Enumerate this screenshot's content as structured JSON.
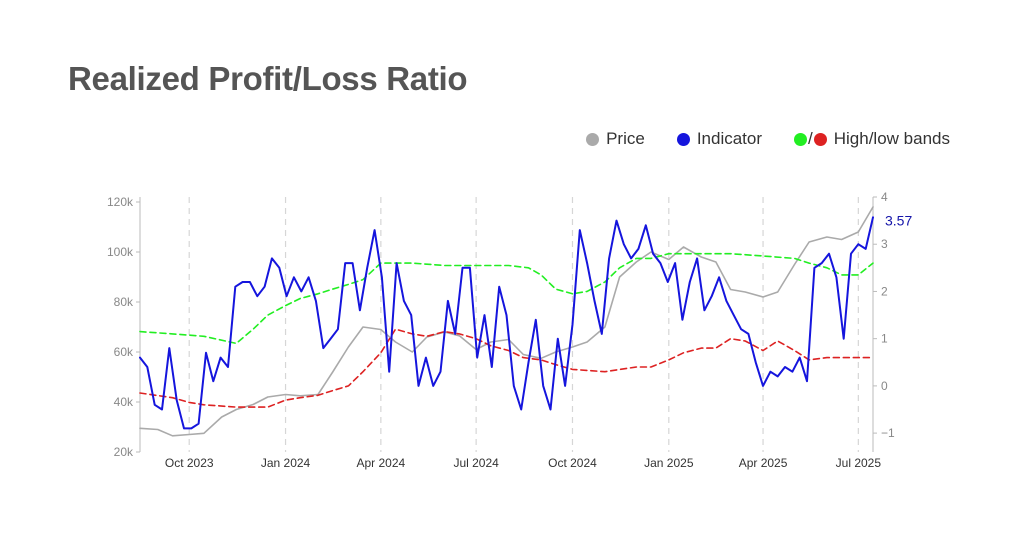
{
  "title": "Realized Profit/Loss Ratio",
  "legend": {
    "price_label": "Price",
    "indicator_label": "Indicator",
    "slash": "/",
    "bands_label": "High/low bands"
  },
  "colors": {
    "price": "#aaaaaa",
    "indicator": "#1515dd",
    "high_band": "#22ee22",
    "low_band": "#dd2222",
    "axis_text": "#888888",
    "grid": "#d6d6d6",
    "last_value": "#1515aa"
  },
  "chart_data": {
    "type": "line",
    "title": "Realized Profit/Loss Ratio",
    "x_range": [
      "2023-08-15",
      "2025-07-15"
    ],
    "x_ticks": [
      {
        "date": "2023-10-01",
        "label": "Oct 2023"
      },
      {
        "date": "2024-01-01",
        "label": "Jan 2024"
      },
      {
        "date": "2024-04-01",
        "label": "Apr 2024"
      },
      {
        "date": "2024-07-01",
        "label": "Jul 2024"
      },
      {
        "date": "2024-10-01",
        "label": "Oct 2024"
      },
      {
        "date": "2025-01-01",
        "label": "Jan 2025"
      },
      {
        "date": "2025-04-01",
        "label": "Apr 2025"
      },
      {
        "date": "2025-07-01",
        "label": "Jul 2025"
      }
    ],
    "y_left": {
      "range": [
        20000,
        122000
      ],
      "ticks": [
        20000,
        40000,
        60000,
        80000,
        100000,
        120000
      ],
      "tick_labels": [
        "20k",
        "40k",
        "60k",
        "80k",
        "100k",
        "120k"
      ]
    },
    "y_right": {
      "range": [
        -1.4,
        4
      ],
      "ticks": [
        -1,
        0,
        1,
        2,
        3,
        4
      ],
      "tick_labels": [
        "−1",
        "0",
        "1",
        "2",
        "3",
        "4"
      ]
    },
    "grid": "vertical dashed at x ticks",
    "legend_position": "top-right",
    "last_value_label": "3.57",
    "series": [
      {
        "name": "Price",
        "axis": "left",
        "x": [
          "2023-08-15",
          "2023-09-01",
          "2023-09-15",
          "2023-10-01",
          "2023-10-15",
          "2023-11-01",
          "2023-11-15",
          "2023-12-01",
          "2023-12-15",
          "2024-01-01",
          "2024-01-15",
          "2024-02-01",
          "2024-02-15",
          "2024-03-01",
          "2024-03-15",
          "2024-04-01",
          "2024-04-15",
          "2024-05-01",
          "2024-05-15",
          "2024-06-01",
          "2024-06-15",
          "2024-07-01",
          "2024-07-15",
          "2024-08-01",
          "2024-08-15",
          "2024-09-01",
          "2024-09-15",
          "2024-10-01",
          "2024-10-15",
          "2024-11-01",
          "2024-11-15",
          "2024-12-01",
          "2024-12-15",
          "2025-01-01",
          "2025-01-15",
          "2025-02-01",
          "2025-02-15",
          "2025-03-01",
          "2025-03-15",
          "2025-04-01",
          "2025-04-15",
          "2025-05-01",
          "2025-05-15",
          "2025-06-01",
          "2025-06-15",
          "2025-07-01",
          "2025-07-15"
        ],
        "y": [
          29500,
          29000,
          26500,
          27000,
          27500,
          34000,
          37000,
          39000,
          42000,
          43000,
          42500,
          43000,
          52000,
          62000,
          70000,
          69000,
          64000,
          60000,
          66000,
          68000,
          66500,
          61000,
          64000,
          65000,
          59000,
          57500,
          60000,
          62000,
          64000,
          70000,
          90000,
          96000,
          100000,
          97000,
          102000,
          98000,
          96000,
          85000,
          84000,
          82000,
          84000,
          95000,
          104000,
          106000,
          105000,
          108000,
          118000
        ]
      },
      {
        "name": "Indicator",
        "axis": "right",
        "x": [
          "2023-08-15",
          "2023-08-22",
          "2023-08-29",
          "2023-09-05",
          "2023-09-12",
          "2023-09-19",
          "2023-09-26",
          "2023-10-03",
          "2023-10-10",
          "2023-10-17",
          "2023-10-24",
          "2023-10-31",
          "2023-11-07",
          "2023-11-14",
          "2023-11-21",
          "2023-11-28",
          "2023-12-05",
          "2023-12-12",
          "2023-12-19",
          "2023-12-26",
          "2024-01-02",
          "2024-01-09",
          "2024-01-16",
          "2024-01-23",
          "2024-01-30",
          "2024-02-06",
          "2024-02-13",
          "2024-02-20",
          "2024-02-27",
          "2024-03-05",
          "2024-03-12",
          "2024-03-19",
          "2024-03-26",
          "2024-04-02",
          "2024-04-09",
          "2024-04-16",
          "2024-04-23",
          "2024-04-30",
          "2024-05-07",
          "2024-05-14",
          "2024-05-21",
          "2024-05-28",
          "2024-06-04",
          "2024-06-11",
          "2024-06-18",
          "2024-06-25",
          "2024-07-02",
          "2024-07-09",
          "2024-07-16",
          "2024-07-23",
          "2024-07-30",
          "2024-08-06",
          "2024-08-13",
          "2024-08-20",
          "2024-08-27",
          "2024-09-03",
          "2024-09-10",
          "2024-09-17",
          "2024-09-24",
          "2024-10-01",
          "2024-10-08",
          "2024-10-15",
          "2024-10-22",
          "2024-10-29",
          "2024-11-05",
          "2024-11-12",
          "2024-11-19",
          "2024-11-26",
          "2024-12-03",
          "2024-12-10",
          "2024-12-17",
          "2024-12-24",
          "2024-12-31",
          "2025-01-07",
          "2025-01-14",
          "2025-01-21",
          "2025-01-28",
          "2025-02-04",
          "2025-02-11",
          "2025-02-18",
          "2025-02-25",
          "2025-03-04",
          "2025-03-11",
          "2025-03-18",
          "2025-03-25",
          "2025-04-01",
          "2025-04-08",
          "2025-04-15",
          "2025-04-22",
          "2025-04-29",
          "2025-05-06",
          "2025-05-13",
          "2025-05-20",
          "2025-05-27",
          "2025-06-03",
          "2025-06-10",
          "2025-06-17",
          "2025-06-24",
          "2025-07-01",
          "2025-07-08",
          "2025-07-15"
        ],
        "y": [
          0.6,
          0.4,
          -0.4,
          -0.5,
          0.8,
          -0.3,
          -0.9,
          -0.9,
          -0.8,
          0.7,
          0.1,
          0.6,
          0.4,
          2.1,
          2.2,
          2.2,
          1.9,
          2.1,
          2.7,
          2.5,
          1.9,
          2.3,
          2.0,
          2.3,
          1.8,
          0.8,
          1.0,
          1.2,
          2.6,
          2.6,
          1.6,
          2.5,
          3.3,
          2.3,
          0.3,
          2.6,
          1.8,
          1.5,
          0.0,
          0.6,
          0.0,
          0.3,
          1.8,
          1.1,
          2.5,
          2.5,
          0.6,
          1.5,
          0.4,
          2.1,
          1.5,
          0.0,
          -0.5,
          0.5,
          1.4,
          0.0,
          -0.5,
          1.0,
          0.0,
          1.3,
          3.3,
          2.6,
          1.8,
          1.1,
          2.7,
          3.5,
          3.0,
          2.7,
          2.9,
          3.4,
          2.8,
          2.6,
          2.2,
          2.6,
          1.4,
          2.2,
          2.7,
          1.6,
          1.9,
          2.3,
          1.8,
          1.5,
          1.2,
          1.1,
          0.5,
          0.0,
          0.3,
          0.2,
          0.4,
          0.3,
          0.6,
          0.1,
          2.5,
          2.6,
          2.8,
          2.3,
          1.0,
          2.8,
          3.0,
          2.9,
          3.57
        ]
      },
      {
        "name": "High band",
        "axis": "right",
        "x": [
          "2023-08-15",
          "2023-09-15",
          "2023-10-15",
          "2023-11-15",
          "2023-12-01",
          "2023-12-15",
          "2024-01-01",
          "2024-01-15",
          "2024-02-01",
          "2024-02-15",
          "2024-03-01",
          "2024-03-15",
          "2024-04-01",
          "2024-05-01",
          "2024-06-01",
          "2024-07-01",
          "2024-08-01",
          "2024-08-20",
          "2024-09-01",
          "2024-09-15",
          "2024-10-01",
          "2024-10-15",
          "2024-11-01",
          "2024-11-15",
          "2024-12-01",
          "2024-12-15",
          "2025-01-01",
          "2025-02-01",
          "2025-03-01",
          "2025-04-01",
          "2025-05-01",
          "2025-05-15",
          "2025-06-01",
          "2025-06-15",
          "2025-07-01",
          "2025-07-15"
        ],
        "y": [
          1.15,
          1.1,
          1.05,
          0.9,
          1.2,
          1.5,
          1.7,
          1.85,
          1.95,
          2.05,
          2.15,
          2.25,
          2.6,
          2.6,
          2.55,
          2.55,
          2.55,
          2.5,
          2.35,
          2.05,
          1.95,
          2.0,
          2.2,
          2.5,
          2.7,
          2.7,
          2.8,
          2.8,
          2.8,
          2.75,
          2.7,
          2.6,
          2.5,
          2.35,
          2.35,
          2.6
        ]
      },
      {
        "name": "Low band",
        "axis": "right",
        "x": [
          "2023-08-15",
          "2023-09-15",
          "2023-10-01",
          "2023-10-15",
          "2023-11-15",
          "2023-12-15",
          "2024-01-01",
          "2024-01-15",
          "2024-02-01",
          "2024-02-15",
          "2024-03-01",
          "2024-03-15",
          "2024-04-01",
          "2024-04-15",
          "2024-05-01",
          "2024-05-15",
          "2024-06-01",
          "2024-06-15",
          "2024-07-01",
          "2024-07-15",
          "2024-08-01",
          "2024-08-15",
          "2024-09-01",
          "2024-09-15",
          "2024-10-01",
          "2024-11-01",
          "2024-12-01",
          "2024-12-15",
          "2025-01-01",
          "2025-01-15",
          "2025-02-01",
          "2025-02-15",
          "2025-03-01",
          "2025-03-15",
          "2025-04-01",
          "2025-04-15",
          "2025-05-01",
          "2025-05-15",
          "2025-06-01",
          "2025-07-01",
          "2025-07-15"
        ],
        "y": [
          -0.15,
          -0.25,
          -0.35,
          -0.4,
          -0.45,
          -0.45,
          -0.3,
          -0.25,
          -0.2,
          -0.1,
          0.0,
          0.3,
          0.7,
          1.2,
          1.1,
          1.05,
          1.15,
          1.1,
          1.0,
          0.85,
          0.75,
          0.6,
          0.55,
          0.45,
          0.35,
          0.3,
          0.4,
          0.4,
          0.55,
          0.7,
          0.8,
          0.8,
          1.0,
          0.95,
          0.75,
          0.95,
          0.75,
          0.55,
          0.6,
          0.6,
          0.6
        ]
      }
    ]
  }
}
